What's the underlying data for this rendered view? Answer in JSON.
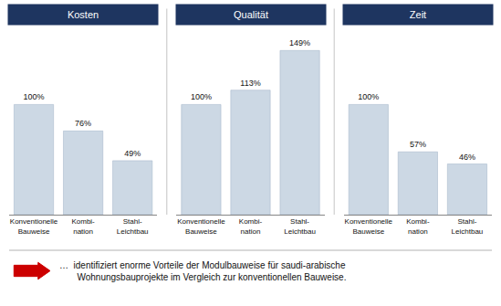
{
  "chart_data": [
    {
      "type": "bar",
      "title": "Kosten",
      "categories": [
        "Konventionelle\nBauweise",
        "Kombi-\nnation",
        "Stahl-\nLeichtbau"
      ],
      "values": [
        100,
        76,
        49
      ],
      "value_labels": [
        "100%",
        "76%",
        "49%"
      ],
      "color": "#ccd8e4",
      "ylim": [
        0,
        170
      ],
      "data_labels": true,
      "tick_labels": "x",
      "grid": false,
      "annotations": [
        "…  identifiziert enorme Vorteile der Modulbauweise für saudi-arabische\n       Wohnungsbauprojekte im Vergleich zur konventionellen Bauweise."
      ]
    },
    {
      "type": "bar",
      "title": "Qualität",
      "categories": [
        "Konventionelle\nBauweise",
        "Kombi-\nnation",
        "Stahl-\nLeichtbau"
      ],
      "values": [
        100,
        113,
        149
      ],
      "value_labels": [
        "100%",
        "113%",
        "149%"
      ],
      "color": "#ccd8e4",
      "ylim": [
        0,
        170
      ],
      "data_labels": true,
      "tick_labels": "x",
      "grid": false
    },
    {
      "type": "bar",
      "title": "Zeit",
      "categories": [
        "Konventionelle\nBauweise",
        "Kombi-\nnation",
        "Stahl-\nLeichtbau"
      ],
      "values": [
        100,
        57,
        46
      ],
      "value_labels": [
        "100%",
        "57%",
        "46%"
      ],
      "color": "#ccd8e4",
      "ylim": [
        0,
        170
      ],
      "data_labels": true,
      "tick_labels": "x",
      "grid": false
    }
  ]
}
